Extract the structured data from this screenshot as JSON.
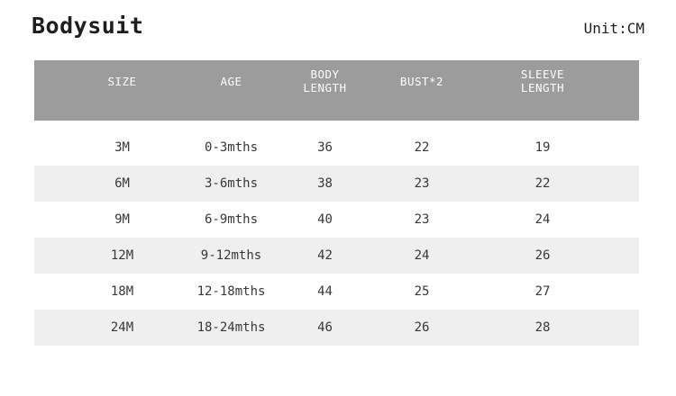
{
  "header": {
    "title": "Bodysuit",
    "unit_label": "Unit:CM"
  },
  "table": {
    "head": {
      "size": "SIZE",
      "age": "AGE",
      "body_length": "BODY\nLENGTH",
      "bust": "BUST*2",
      "sleeve_length": "SLEEVE\nLENGTH"
    },
    "rows": [
      {
        "size": "3M",
        "age": "0-3mths",
        "body_length": "36",
        "bust": "22",
        "sleeve_length": "19"
      },
      {
        "size": "6M",
        "age": "3-6mths",
        "body_length": "38",
        "bust": "23",
        "sleeve_length": "22"
      },
      {
        "size": "9M",
        "age": "6-9mths",
        "body_length": "40",
        "bust": "23",
        "sleeve_length": "24"
      },
      {
        "size": "12M",
        "age": "9-12mths",
        "body_length": "42",
        "bust": "24",
        "sleeve_length": "26"
      },
      {
        "size": "18M",
        "age": "12-18mths",
        "body_length": "44",
        "bust": "25",
        "sleeve_length": "27"
      },
      {
        "size": "24M",
        "age": "18-24mths",
        "body_length": "46",
        "bust": "26",
        "sleeve_length": "28"
      }
    ]
  },
  "colors": {
    "header_bg": "#9c9c9c",
    "header_text": "#ffffff",
    "stripe_bg": "#efefef",
    "body_text": "#383838",
    "title_text": "#1e1e1e"
  },
  "chart_data": {
    "type": "table",
    "title": "Bodysuit",
    "unit": "CM",
    "columns": [
      "SIZE",
      "AGE",
      "BODY LENGTH",
      "BUST*2",
      "SLEEVE LENGTH"
    ],
    "rows": [
      [
        "3M",
        "0-3mths",
        36,
        22,
        19
      ],
      [
        "6M",
        "3-6mths",
        38,
        23,
        22
      ],
      [
        "9M",
        "6-9mths",
        40,
        23,
        24
      ],
      [
        "12M",
        "9-12mths",
        42,
        24,
        26
      ],
      [
        "18M",
        "12-18mths",
        44,
        25,
        27
      ],
      [
        "24M",
        "18-24mths",
        46,
        26,
        28
      ]
    ]
  }
}
